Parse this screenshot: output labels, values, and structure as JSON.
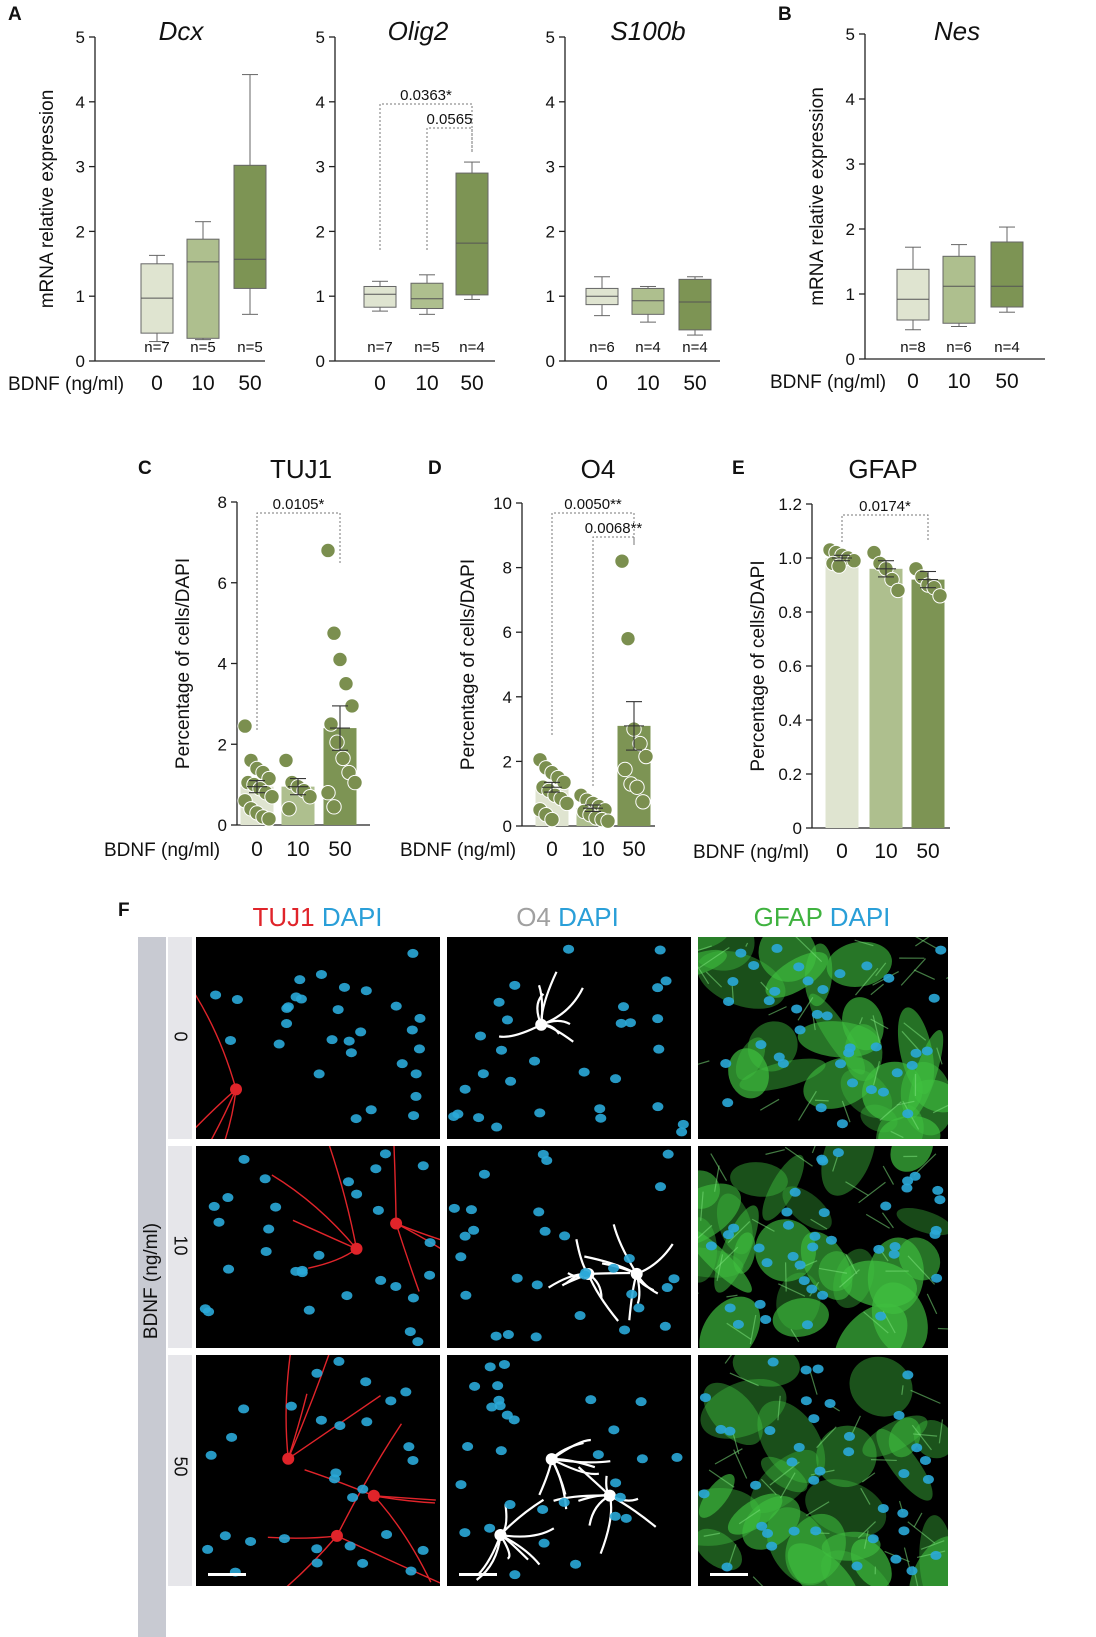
{
  "panel_letters": {
    "A": "A",
    "B": "B",
    "C": "C",
    "D": "D",
    "E": "E",
    "F": "F"
  },
  "colors": {
    "g0": "#dfe4d0",
    "g10": "#aebf8e",
    "g50": "#7d9454",
    "dot": "#7b8f4f",
    "dapi": "#2aa8d8",
    "tuj1": "#e0242a",
    "o4": "#ffffff",
    "gfap": "#3fbf3f",
    "text_red": "#e0242a",
    "text_blue": "#2a9fd8",
    "text_grey": "#a0a0a0",
    "text_green": "#3fb23f"
  },
  "x_axis_label": "BDNF (ng/ml)",
  "chart_data": [
    {
      "id": "dcx",
      "panel": "A",
      "type": "box",
      "title": "Dcx",
      "italic": true,
      "ylabel": "mRNA relative expression",
      "ylim": [
        0,
        5
      ],
      "yticks": [
        "0",
        "1",
        "2",
        "3",
        "4",
        "5"
      ],
      "categories": [
        "0",
        "10",
        "50"
      ],
      "boxes": [
        {
          "min": 0.3,
          "q1": 0.43,
          "median": 0.97,
          "q3": 1.5,
          "max": 1.63
        },
        {
          "min": 0.33,
          "q1": 0.35,
          "median": 1.53,
          "q3": 1.88,
          "max": 2.15
        },
        {
          "min": 0.72,
          "q1": 1.12,
          "median": 1.57,
          "q3": 3.02,
          "max": 4.42
        }
      ],
      "n_labels": [
        "n=7",
        "n=5",
        "n=5"
      ],
      "stats": []
    },
    {
      "id": "olig2",
      "panel": "A",
      "type": "box",
      "title": "Olig2",
      "italic": true,
      "ylabel": "",
      "ylim": [
        0,
        5
      ],
      "yticks": [
        "0",
        "1",
        "2",
        "3",
        "4",
        "5"
      ],
      "categories": [
        "0",
        "10",
        "50"
      ],
      "boxes": [
        {
          "min": 0.77,
          "q1": 0.83,
          "median": 1.03,
          "q3": 1.15,
          "max": 1.23
        },
        {
          "min": 0.72,
          "q1": 0.81,
          "median": 0.96,
          "q3": 1.2,
          "max": 1.33
        },
        {
          "min": 0.95,
          "q1": 1.02,
          "median": 1.82,
          "q3": 2.9,
          "max": 3.07
        }
      ],
      "n_labels": [
        "n=7",
        "n=5",
        "n=4"
      ],
      "stats": [
        {
          "from": 0,
          "to": 2,
          "label": "0.0363*"
        },
        {
          "from": 1,
          "to": 2,
          "label": "0.0565"
        }
      ]
    },
    {
      "id": "s100b",
      "panel": "A",
      "type": "box",
      "title": "S100b",
      "italic": true,
      "ylabel": "",
      "ylim": [
        0,
        5
      ],
      "yticks": [
        "0",
        "1",
        "2",
        "3",
        "4",
        "5"
      ],
      "categories": [
        "0",
        "10",
        "50"
      ],
      "boxes": [
        {
          "min": 0.7,
          "q1": 0.87,
          "median": 1.0,
          "q3": 1.12,
          "max": 1.3
        },
        {
          "min": 0.6,
          "q1": 0.72,
          "median": 0.93,
          "q3": 1.12,
          "max": 1.15
        },
        {
          "min": 0.4,
          "q1": 0.48,
          "median": 0.91,
          "q3": 1.26,
          "max": 1.3
        }
      ],
      "n_labels": [
        "n=6",
        "n=4",
        "n=4"
      ],
      "stats": []
    },
    {
      "id": "nes",
      "panel": "B",
      "type": "box",
      "title": "Nes",
      "italic": true,
      "ylabel": "mRNA relative expression",
      "ylim": [
        0,
        5
      ],
      "yticks": [
        "0",
        "1",
        "2",
        "3",
        "4",
        "5"
      ],
      "categories": [
        "0",
        "10",
        "50"
      ],
      "boxes": [
        {
          "min": 0.45,
          "q1": 0.6,
          "median": 0.92,
          "q3": 1.38,
          "max": 1.72
        },
        {
          "min": 0.5,
          "q1": 0.55,
          "median": 1.12,
          "q3": 1.58,
          "max": 1.76
        },
        {
          "min": 0.72,
          "q1": 0.8,
          "median": 1.12,
          "q3": 1.8,
          "max": 2.03
        }
      ],
      "n_labels": [
        "n=8",
        "n=6",
        "n=4"
      ],
      "stats": []
    },
    {
      "id": "tuj1",
      "panel": "C",
      "type": "bar",
      "title": "TUJ1",
      "italic": false,
      "ylabel": "Percentage of cells/DAPI",
      "ylim": [
        0,
        8
      ],
      "yticks": [
        "0",
        "2",
        "4",
        "6",
        "8"
      ],
      "categories": [
        "0",
        "10",
        "50"
      ],
      "means": [
        0.95,
        0.95,
        2.4
      ],
      "sem": [
        0.15,
        0.2,
        0.55
      ],
      "points": [
        [
          2.45,
          1.6,
          1.4,
          1.3,
          1.15,
          1.05,
          1.0,
          0.9,
          0.8,
          0.7,
          0.6,
          0.4,
          0.3,
          0.2,
          0.15
        ],
        [
          1.6,
          1.05,
          0.95,
          0.85,
          0.7,
          0.4
        ],
        [
          6.8,
          4.75,
          4.1,
          3.5,
          2.95,
          2.5,
          2.05,
          1.65,
          1.3,
          1.05,
          0.8,
          0.45
        ]
      ],
      "stats": [
        {
          "from": 0,
          "to": 2,
          "label": "0.0105*"
        }
      ]
    },
    {
      "id": "o4",
      "panel": "D",
      "type": "bar",
      "title": "O4",
      "italic": false,
      "ylabel": "Percentage of cells/DAPI",
      "ylim": [
        0,
        10
      ],
      "yticks": [
        "0",
        "2",
        "4",
        "6",
        "8",
        "10"
      ],
      "categories": [
        "0",
        "10",
        "50"
      ],
      "means": [
        1.2,
        0.55,
        3.1
      ],
      "sem": [
        0.15,
        0.1,
        0.75
      ],
      "points": [
        [
          2.05,
          1.8,
          1.65,
          1.5,
          1.35,
          1.2,
          1.1,
          0.95,
          0.85,
          0.7,
          0.5,
          0.35,
          0.2
        ],
        [
          0.95,
          0.8,
          0.7,
          0.6,
          0.5,
          0.45,
          0.35,
          0.25,
          0.2,
          0.15
        ],
        [
          8.2,
          5.8,
          3.0,
          2.55,
          2.15,
          1.75,
          1.3,
          1.2,
          0.75
        ]
      ],
      "stats": [
        {
          "from": 0,
          "to": 2,
          "label": "0.0050**"
        },
        {
          "from": 1,
          "to": 2,
          "label": "0.0068**"
        }
      ]
    },
    {
      "id": "gfap",
      "panel": "E",
      "type": "bar",
      "title": "GFAP",
      "italic": false,
      "ylabel": "Percentage of cells/DAPI",
      "ylim": [
        0,
        1.2
      ],
      "yticks": [
        "0",
        "0.2",
        "0.4",
        "0.6",
        "0.8",
        "1.0",
        "1.2"
      ],
      "categories": [
        "0",
        "10",
        "50"
      ],
      "means": [
        1.0,
        0.96,
        0.92
      ],
      "sem": [
        0.01,
        0.03,
        0.03
      ],
      "points": [
        [
          1.03,
          1.02,
          1.01,
          1.0,
          0.99,
          0.98,
          0.97
        ],
        [
          1.02,
          0.98,
          0.96,
          0.92,
          0.88
        ],
        [
          0.96,
          0.93,
          0.9,
          0.89,
          0.86
        ]
      ],
      "stats": [
        {
          "from": 0,
          "to": 2,
          "label": "0.0174*"
        }
      ]
    }
  ],
  "micrographs": {
    "columns": [
      {
        "marker": "TUJ1",
        "dapi": "DAPI"
      },
      {
        "marker": "O4",
        "dapi": "DAPI"
      },
      {
        "marker": "GFAP",
        "dapi": "DAPI"
      }
    ],
    "rows": [
      "0",
      "10",
      "50"
    ],
    "side_label": "BDNF (ng/ml)"
  }
}
